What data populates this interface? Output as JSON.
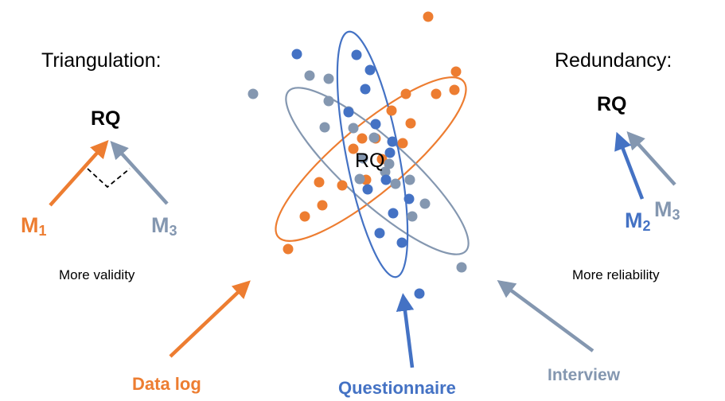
{
  "colors": {
    "orange": "#ED7D31",
    "blue": "#4472C4",
    "grey": "#8497B0",
    "black": "#000000"
  },
  "left_panel": {
    "title": "Triangulation:",
    "rq": "RQ",
    "m1": {
      "letter": "M",
      "sub": "1"
    },
    "m3": {
      "letter": "M",
      "sub": "3"
    },
    "caption": "More validity"
  },
  "right_panel": {
    "title": "Redundancy:",
    "rq": "RQ",
    "m2": {
      "letter": "M",
      "sub": "2"
    },
    "m3": {
      "letter": "M",
      "sub": "3"
    },
    "caption": "More reliability"
  },
  "center": {
    "rq": "RQ"
  },
  "methods": {
    "data_log": "Data log",
    "questionnaire": "Questionnaire",
    "interview": "Interview"
  }
}
